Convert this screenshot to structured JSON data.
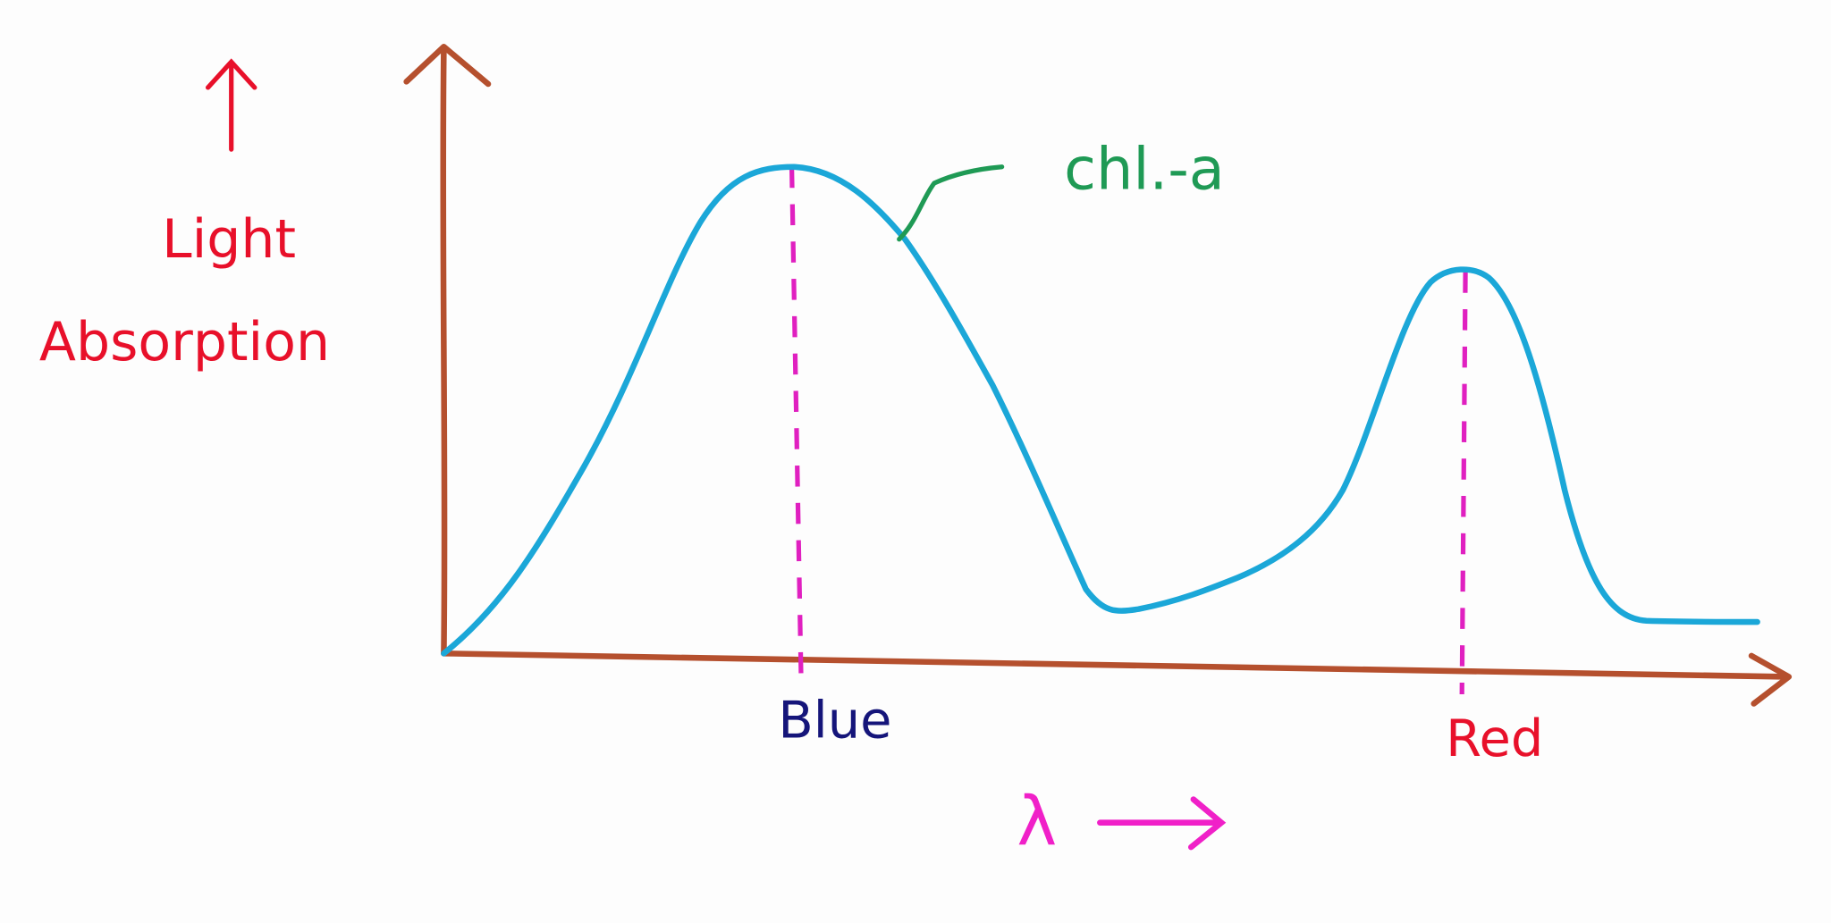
{
  "y_axis": {
    "label_lines": [
      "Light",
      "Absorption"
    ]
  },
  "curve_label": "chl.-a",
  "peaks": [
    {
      "label": "Blue"
    },
    {
      "label": "Red"
    }
  ],
  "x_axis": {
    "label": "λ"
  }
}
